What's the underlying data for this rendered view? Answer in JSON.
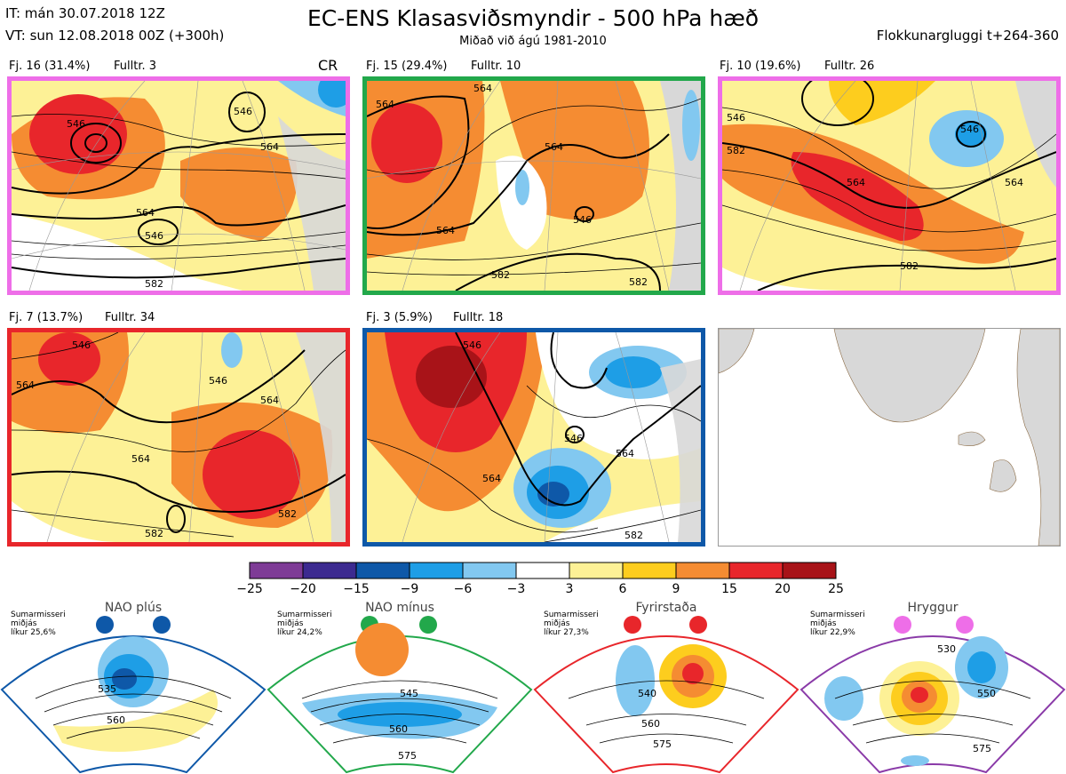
{
  "header": {
    "init_time": "IT: mán 30.07.2018 12Z",
    "valid_time": "VT: sun 12.08.2018 00Z  (+300h)",
    "title": "EC-ENS Klasasviðsmyndir - 500 hPa hæð",
    "subtitle": "Miðað við ágú 1981-2010",
    "window": "Flokkunargluggi t+264-360"
  },
  "panels": [
    {
      "label": "Fj. 16 (31.4%)",
      "fulltr": "Fulltr. 3",
      "tag": "CR",
      "border": "#ee6ee8",
      "contours": [
        "546",
        "546",
        "564",
        "564",
        "546",
        "582"
      ]
    },
    {
      "label": "Fj. 15 (29.4%)",
      "fulltr": "Fulltr. 10",
      "border": "#22a84b",
      "contours": [
        "564",
        "564",
        "564",
        "546",
        "564",
        "582",
        "582"
      ]
    },
    {
      "label": "Fj. 10 (19.6%)",
      "fulltr": "Fulltr. 26",
      "border": "#ee6ee8",
      "contours": [
        "546",
        "546",
        "564",
        "564",
        "582",
        "582"
      ]
    },
    {
      "label": "Fj. 7 (13.7%)",
      "fulltr": "Fulltr. 34",
      "border": "#e8262b",
      "contours": [
        "546",
        "564",
        "546",
        "564",
        "564",
        "582",
        "582"
      ]
    },
    {
      "label": "Fj. 3 (5.9%)",
      "fulltr": "Fulltr. 18",
      "border": "#0e58a8",
      "contours": [
        "546",
        "546",
        "564",
        "564",
        "582"
      ]
    }
  ],
  "colorbar": {
    "ticks": [
      "−25",
      "−20",
      "−15",
      "−9",
      "−6",
      "−3",
      "3",
      "6",
      "9",
      "15",
      "20",
      "25"
    ],
    "colors": [
      "#7e3b96",
      "#3c2a90",
      "#0e58a8",
      "#1e9ee6",
      "#82c8f0",
      "#ffffff",
      "#fdf196",
      "#fdcd1e",
      "#f58c32",
      "#e8262b",
      "#a81318"
    ]
  },
  "regimes": [
    {
      "name": "NAO plús",
      "text1": "Sumarmisseri",
      "text2": "miðjás",
      "text3": "líkur 25,6%",
      "color": "#0e58a8",
      "contours": [
        "535",
        "560"
      ]
    },
    {
      "name": "NAO mínus",
      "text1": "Sumarmisseri",
      "text2": "miðjás",
      "text3": "líkur 24,2%",
      "color": "#22a84b",
      "contours": [
        "545",
        "560",
        "575"
      ]
    },
    {
      "name": "Fyrirstaða",
      "text1": "Sumarmisseri",
      "text2": "miðjás",
      "text3": "líkur 27,3%",
      "color": "#e8262b",
      "contours": [
        "540",
        "560",
        "575"
      ]
    },
    {
      "name": "Hryggur",
      "text1": "Sumarmisseri",
      "text2": "miðjás",
      "text3": "líkur 22,9%",
      "color": "#ee6ee8",
      "contours": [
        "530",
        "550",
        "575"
      ]
    }
  ]
}
